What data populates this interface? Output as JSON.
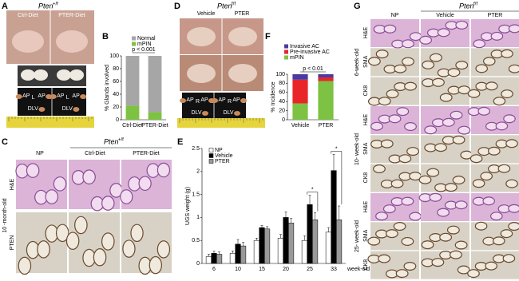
{
  "panel_letters": [
    "A",
    "B",
    "C",
    "D",
    "E",
    "F",
    "G"
  ],
  "panel_a": {
    "gene": "Pten",
    "allele": "+/f",
    "groups": [
      "Ctrl-Diet",
      "PTER-Diet"
    ],
    "lobes": [
      [
        {
          "text": "AP",
          "sub": "L"
        },
        {
          "text": "AP",
          "sub": "R"
        },
        {
          "text": "DLV"
        }
      ],
      [
        {
          "text": "AP",
          "sub": "L"
        },
        {
          "text": "AP",
          "sub": "R"
        },
        {
          "text": "DLV"
        }
      ]
    ]
  },
  "panel_c": {
    "gene": "Pten",
    "allele": "+/f",
    "columns": [
      "NP",
      "Ctrl-Diet",
      "PTER-Diet"
    ],
    "age": "10 -month-old",
    "rows": [
      "H&E",
      "PTEN"
    ]
  },
  "panel_d": {
    "gene": "Pten",
    "allele": "f/f",
    "groups": [
      "Vehicle",
      "PTER"
    ],
    "lobes": [
      [
        {
          "text": "AP",
          "sub": "R"
        },
        {
          "text": "AP",
          "sub": "L"
        },
        {
          "text": "DLV"
        }
      ],
      [
        {
          "text": "AP",
          "sub": "R"
        },
        {
          "text": "AP",
          "sub": "L"
        },
        {
          "text": "DLV"
        }
      ]
    ]
  },
  "panel_g": {
    "gene": "Pten",
    "allele": "f/f",
    "columns": [
      "NP",
      "Vehicle",
      "PTER"
    ],
    "groups": [
      {
        "age": "6-week-old",
        "stains": [
          "H&E",
          "SMA",
          "CK8"
        ]
      },
      {
        "age": "10- week-old",
        "stains": [
          "H&E",
          "SMA",
          "CK8"
        ]
      },
      {
        "age": "25- week-old",
        "stains": [
          "H&E",
          "SMA",
          "CK8"
        ]
      }
    ]
  },
  "chart_data": [
    {
      "type": "stacked_bar",
      "categories": [
        "Ctrl-Diet",
        "PTER-Diet"
      ],
      "series": [
        {
          "name": "mPIN",
          "color": "#7dc242",
          "values": [
            22,
            12
          ]
        },
        {
          "name": "Normal",
          "color": "#a6a6a6",
          "values": [
            78,
            88
          ]
        }
      ],
      "ylabel": "% Glands involved",
      "ylim": [
        0,
        100
      ],
      "yticks": [
        0,
        20,
        40,
        60,
        80,
        100
      ],
      "annotation": "p < 0.001"
    },
    {
      "type": "grouped_bar",
      "categories": [
        "6",
        "10",
        "15",
        "20",
        "25",
        "33"
      ],
      "x_unit": "week-old",
      "series": [
        {
          "name": "NP",
          "color": "#ffffff",
          "values": [
            0.15,
            0.22,
            0.5,
            0.55,
            0.5,
            0.68
          ],
          "errors": [
            0.05,
            0.05,
            0.05,
            0.08,
            0.1,
            0.1
          ]
        },
        {
          "name": "Vehicle",
          "color": "#000000",
          "values": [
            0.22,
            0.42,
            0.78,
            1.0,
            1.28,
            2.02
          ],
          "errors": [
            0.05,
            0.1,
            0.05,
            0.12,
            0.2,
            0.35
          ]
        },
        {
          "name": "PTER",
          "color": "#999999",
          "values": [
            0.2,
            0.38,
            0.75,
            0.88,
            0.95,
            0.95
          ],
          "errors": [
            0.05,
            0.08,
            0.05,
            0.1,
            0.15,
            0.3
          ]
        }
      ],
      "ylabel": "UGS weight (g)",
      "ylim": [
        0,
        2.5
      ],
      "yticks": [
        0,
        0.5,
        1,
        1.5,
        2,
        2.5
      ],
      "annotations": [
        {
          "text": "*",
          "category": "25"
        },
        {
          "text": "*",
          "category": "33"
        }
      ]
    },
    {
      "type": "stacked_bar",
      "categories": [
        "Vehicle",
        "PTER"
      ],
      "series": [
        {
          "name": "mPIN",
          "color": "#7dc242",
          "values": [
            36,
            85
          ]
        },
        {
          "name": "Pre-invasive AC",
          "color": "#e8262a",
          "values": [
            52,
            8
          ]
        },
        {
          "name": "Invasive AC",
          "color": "#4b3ba0",
          "values": [
            12,
            7
          ]
        }
      ],
      "ylabel": "% Incidence",
      "ylim": [
        0,
        100
      ],
      "yticks": [
        0,
        20,
        40,
        60,
        80,
        100
      ],
      "annotation": "p < 0.01"
    }
  ]
}
